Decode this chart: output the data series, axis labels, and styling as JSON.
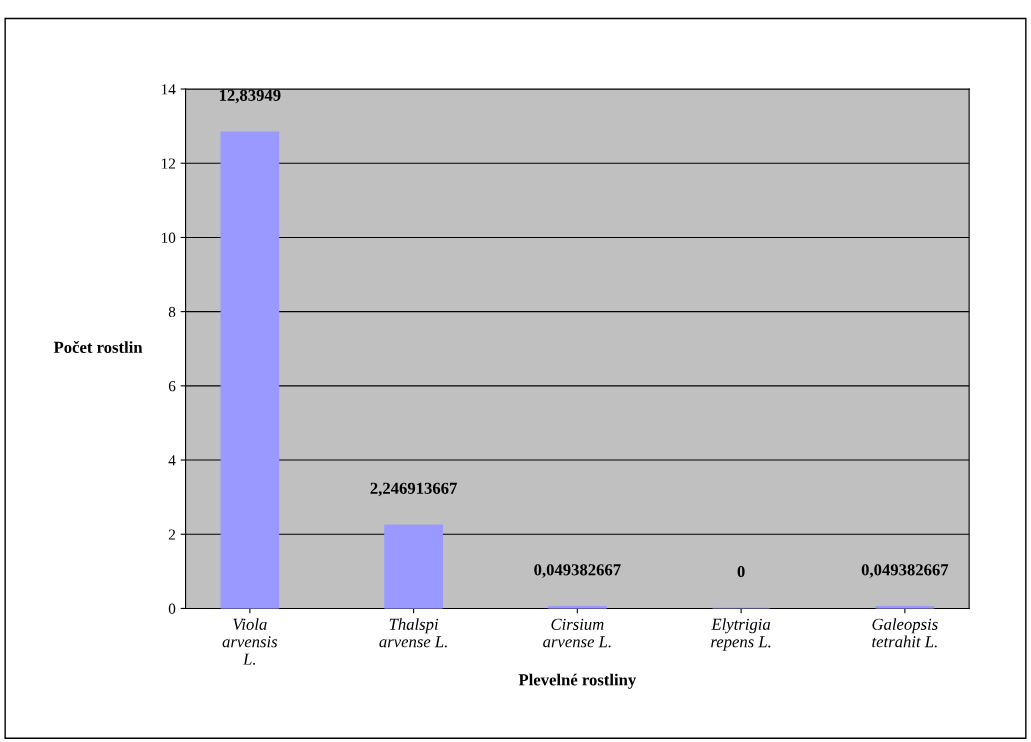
{
  "chart_data": {
    "type": "bar",
    "xlabel": "Plevelné rostliny",
    "ylabel": "Počet rostlin",
    "categories": [
      "Viola\narvensis\nL.",
      "Thalspi\narvense L.",
      "Cirsium\narvense L.",
      "Elytrigia\nrepens L.",
      "Galeopsis\ntetrahit L."
    ],
    "values": [
      12.83949,
      2.246913667,
      0.049382667,
      0,
      0.049382667
    ],
    "value_labels": [
      "12,83949",
      "2,246913667",
      "0,049382667",
      "0",
      "0,049382667"
    ],
    "color": "#9999ff",
    "ylim": [
      0,
      14
    ],
    "yticks": [
      0,
      2,
      4,
      6,
      8,
      10,
      12,
      14
    ],
    "grid": "y",
    "legend": false
  }
}
